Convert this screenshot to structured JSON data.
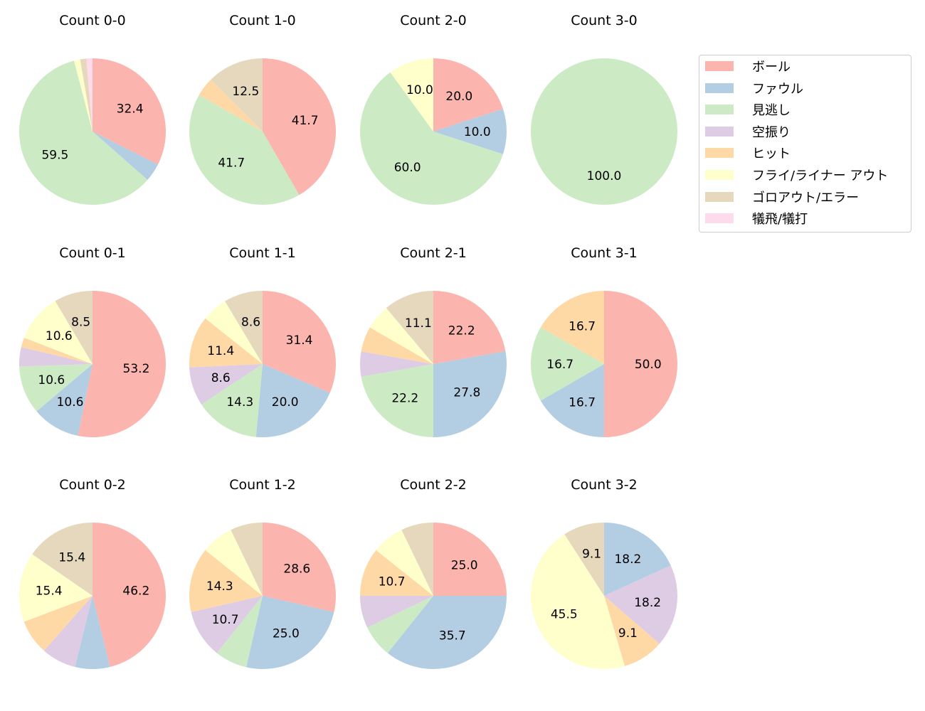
{
  "chart_data": [
    {
      "type": "pie",
      "title": "Count 0-0",
      "values": [
        24,
        3,
        44,
        0,
        0,
        1,
        1,
        1
      ]
    },
    {
      "type": "pie",
      "title": "Count 1-0",
      "values": [
        10,
        0,
        10,
        0,
        1,
        0,
        3,
        0
      ]
    },
    {
      "type": "pie",
      "title": "Count 2-0",
      "values": [
        2,
        1,
        6,
        0,
        0,
        1,
        0,
        0
      ]
    },
    {
      "type": "pie",
      "title": "Count 3-0",
      "values": [
        0,
        0,
        1,
        0,
        0,
        0,
        0,
        0
      ]
    },
    {
      "type": "pie",
      "title": "Count 0-1",
      "values": [
        25,
        5,
        5,
        2,
        1,
        5,
        4,
        0
      ]
    },
    {
      "type": "pie",
      "title": "Count 1-1",
      "values": [
        11,
        7,
        5,
        3,
        4,
        2,
        3,
        0
      ]
    },
    {
      "type": "pie",
      "title": "Count 2-1",
      "values": [
        8,
        10,
        8,
        2,
        2,
        2,
        4,
        0
      ]
    },
    {
      "type": "pie",
      "title": "Count 3-1",
      "values": [
        3,
        1,
        1,
        0,
        1,
        0,
        0,
        0
      ]
    },
    {
      "type": "pie",
      "title": "Count 0-2",
      "values": [
        6,
        1,
        0,
        1,
        1,
        2,
        2,
        0
      ]
    },
    {
      "type": "pie",
      "title": "Count 1-2",
      "values": [
        8,
        7,
        2,
        3,
        4,
        2,
        2,
        0
      ]
    },
    {
      "type": "pie",
      "title": "Count 2-2",
      "values": [
        7,
        10,
        2,
        2,
        3,
        2,
        2,
        0
      ]
    },
    {
      "type": "pie",
      "title": "Count 3-2",
      "values": [
        0,
        2,
        0,
        2,
        1,
        5,
        1,
        0
      ]
    }
  ],
  "categories": [
    "ボール",
    "ファウル",
    "見逃し",
    "空振り",
    "ヒット",
    "フライ/ライナー アウト",
    "ゴロアウト/エラー",
    "犠飛/犠打"
  ],
  "colors": [
    "#fbb4ae",
    "#b3cde3",
    "#ccebc5",
    "#decbe4",
    "#fed9a6",
    "#ffffcc",
    "#e5d8bd",
    "#fddaec"
  ],
  "legend": {
    "placement": "right"
  },
  "start_angle": 90,
  "direction": "clockwise",
  "label_format": "percent, 1 decimal"
}
